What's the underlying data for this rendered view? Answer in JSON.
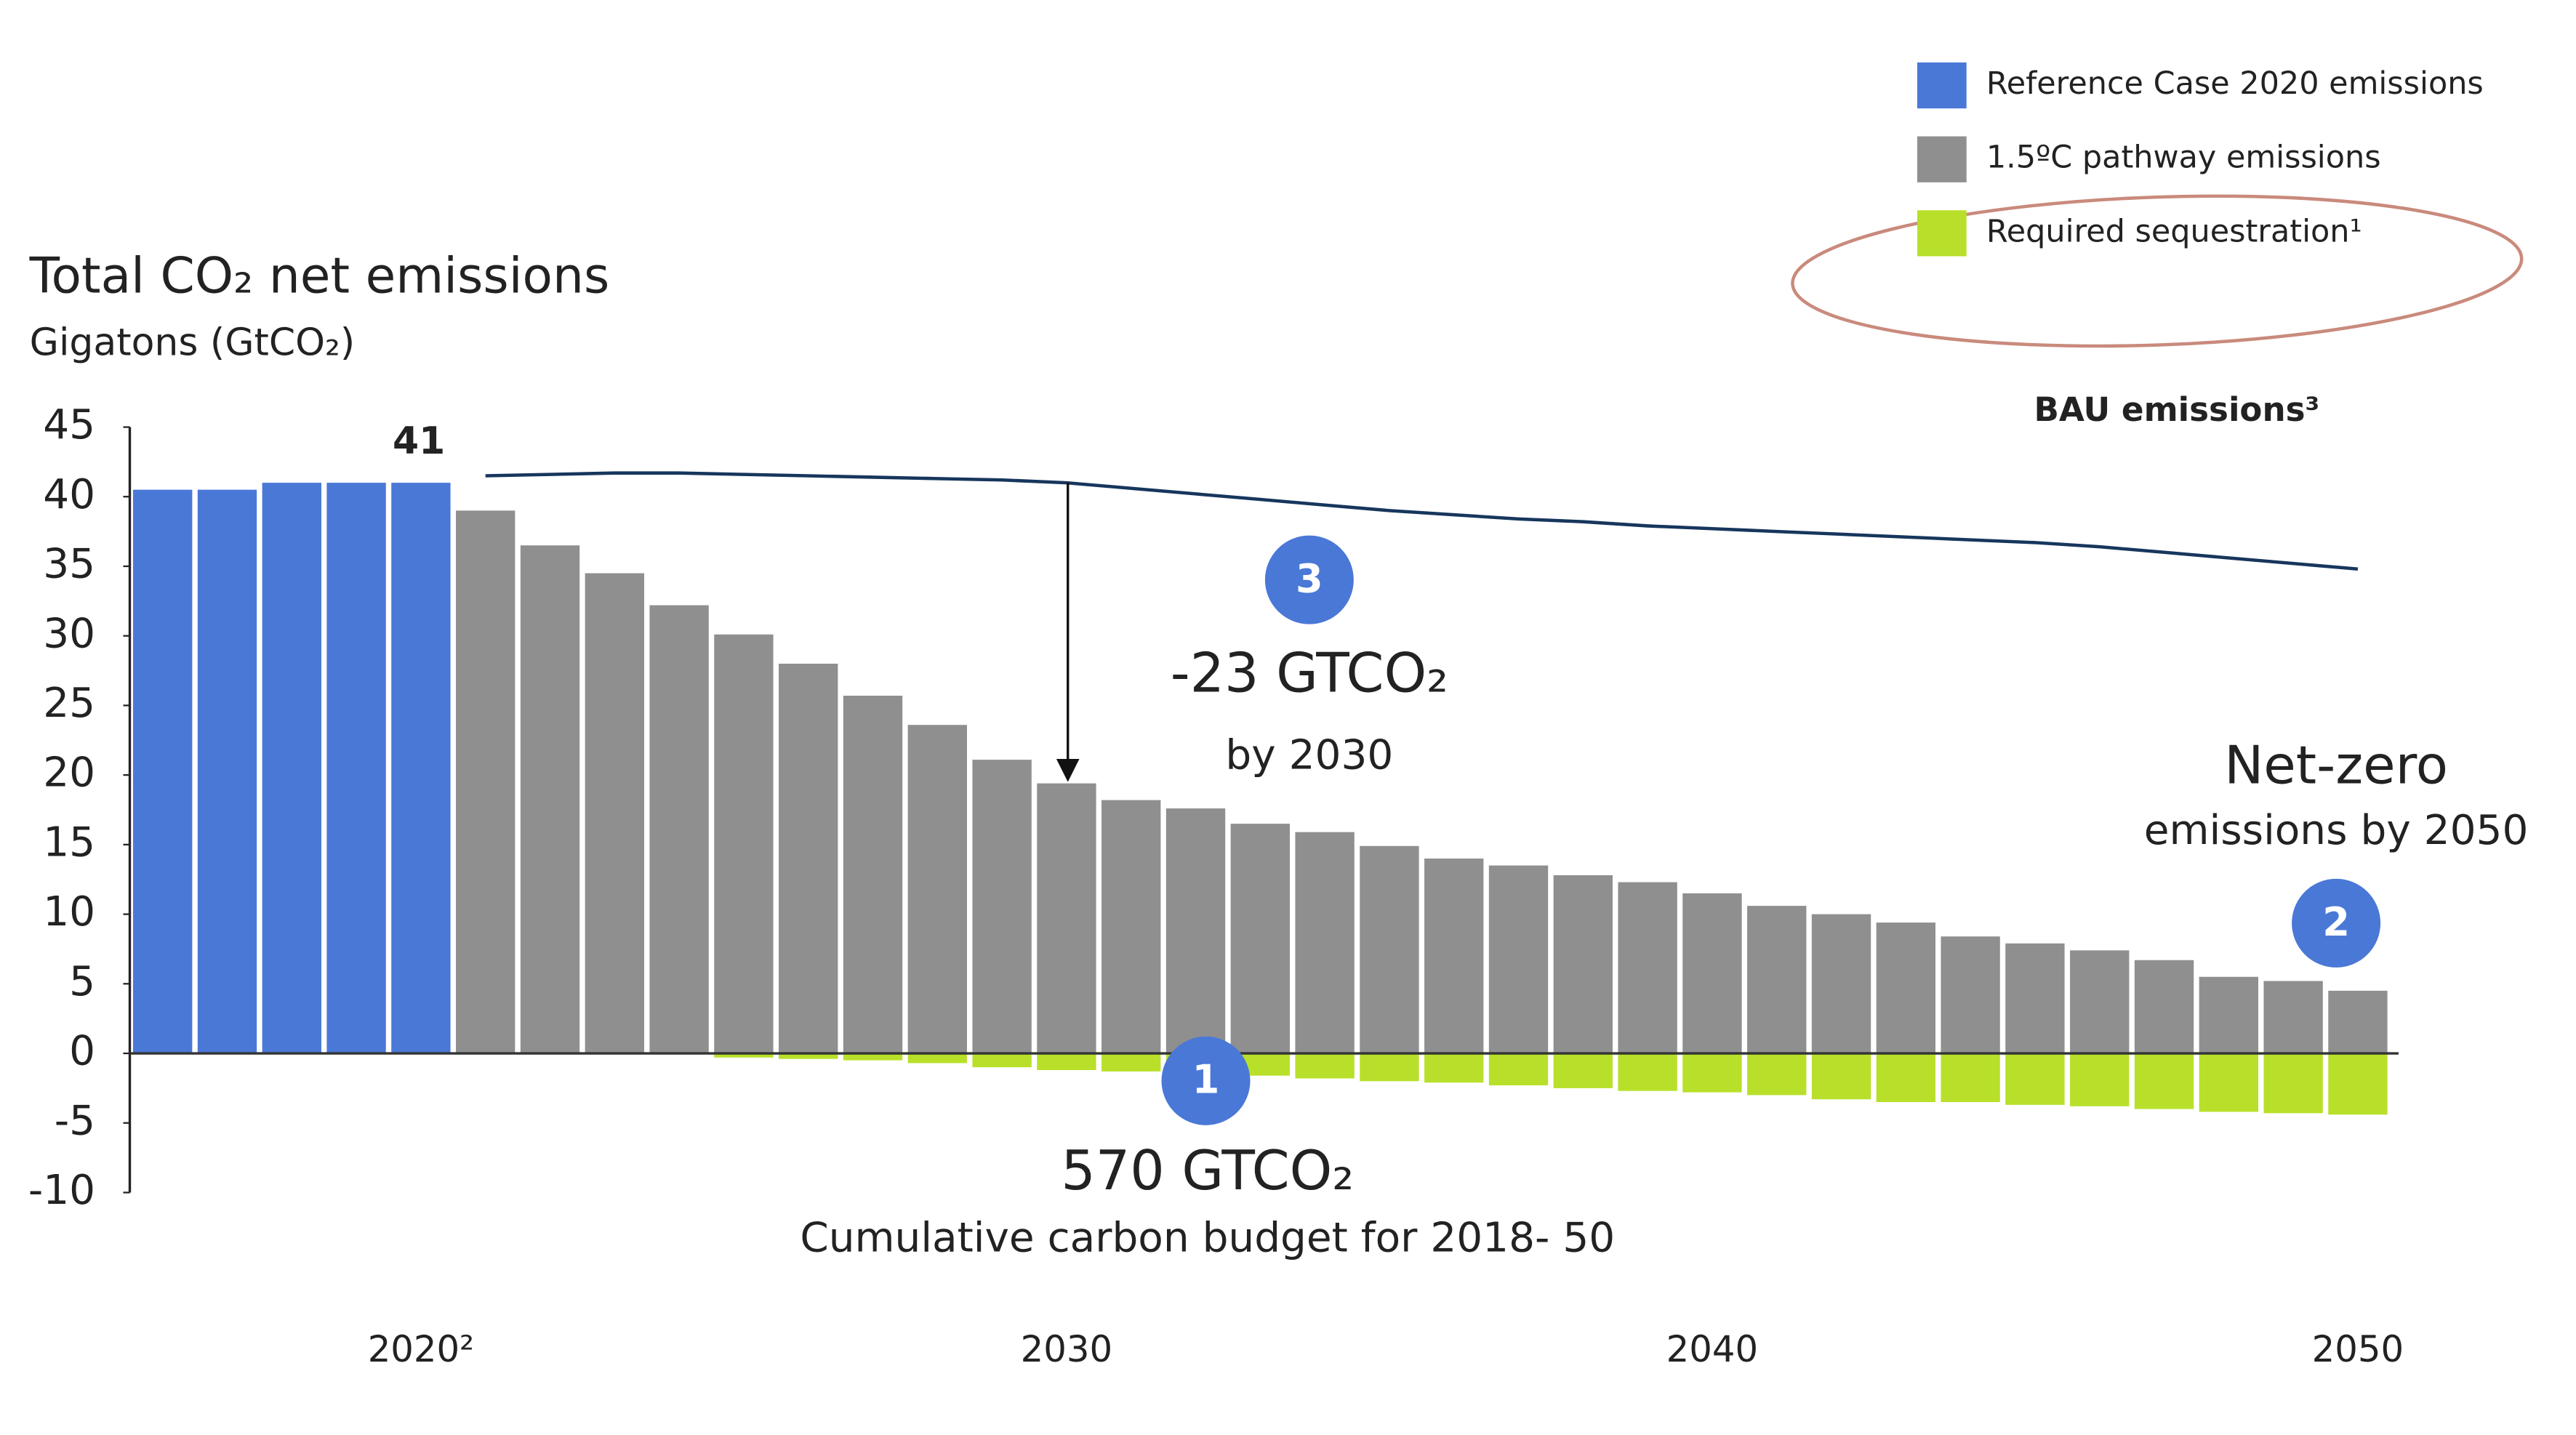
{
  "chart_data": {
    "type": "bar",
    "title": "Total CO₂ net emissions",
    "subtitle": "Gigatons (GtCO₂)",
    "categories": [
      null,
      null,
      null,
      null,
      "2020²",
      null,
      null,
      null,
      null,
      null,
      null,
      null,
      null,
      null,
      "2030",
      null,
      null,
      null,
      null,
      null,
      null,
      null,
      null,
      null,
      "2040",
      null,
      null,
      null,
      null,
      null,
      null,
      null,
      null,
      null,
      "2050"
    ],
    "series": [
      {
        "name": "Reference Case 2020 emissions",
        "color": "#4a78d6",
        "values": [
          40.5,
          40.5,
          41,
          41,
          41,
          null,
          null,
          null,
          null,
          null,
          null,
          null,
          null,
          null,
          null,
          null,
          null,
          null,
          null,
          null,
          null,
          null,
          null,
          null,
          null,
          null,
          null,
          null,
          null,
          null,
          null,
          null,
          null,
          null,
          null
        ]
      },
      {
        "name": "1.5ºC pathway emissions",
        "color": "#8f8f8f",
        "values": [
          null,
          null,
          null,
          null,
          null,
          39,
          36.5,
          34.5,
          32.2,
          30.1,
          28,
          25.7,
          23.6,
          21.1,
          19.4,
          18.2,
          17.6,
          16.5,
          15.9,
          14.9,
          14,
          13.5,
          12.8,
          12.3,
          11.5,
          10.6,
          10,
          9.4,
          8.4,
          7.9,
          7.4,
          6.7,
          5.5,
          5.2,
          4.5
        ]
      },
      {
        "name": "Required sequestration¹",
        "color": "#b8e02a",
        "values": [
          null,
          null,
          null,
          null,
          null,
          null,
          null,
          null,
          null,
          -0.3,
          -0.4,
          -0.5,
          -0.7,
          -1,
          -1.2,
          -1.3,
          -1.5,
          -1.6,
          -1.8,
          -2,
          -2.1,
          -2.3,
          -2.5,
          -2.7,
          -2.8,
          -3,
          -3.3,
          -3.5,
          -3.5,
          -3.7,
          -3.8,
          -4,
          -4.2,
          -4.3,
          -4.4
        ]
      },
      {
        "name": "BAU emissions³",
        "color": "#17365d",
        "type": "line",
        "values": [
          null,
          null,
          null,
          null,
          null,
          41.5,
          41.6,
          41.7,
          41.7,
          41.6,
          41.5,
          41.4,
          41.3,
          41.2,
          41,
          40.6,
          40.2,
          39.8,
          39.4,
          39,
          38.7,
          38.4,
          38.2,
          37.9,
          37.7,
          37.5,
          37.3,
          37.1,
          36.9,
          36.7,
          36.4,
          36,
          35.6,
          35.2,
          34.8
        ]
      }
    ],
    "ylim": [
      -10,
      45
    ],
    "yticks": [
      -10,
      -5,
      0,
      5,
      10,
      15,
      20,
      25,
      30,
      35,
      40,
      45
    ],
    "annotations": [
      "41",
      "-23 GTCO₂",
      "by 2030",
      "Net-zero",
      "emissions by 2050",
      "570 GTCO₂",
      "Cumulative carbon budget for 2018- 50"
    ],
    "badges": [
      "1",
      "2",
      "3"
    ]
  }
}
